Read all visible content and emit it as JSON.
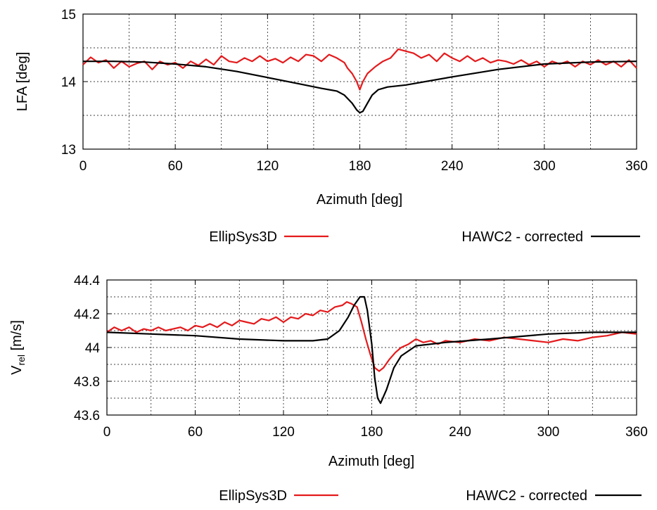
{
  "chart_data": [
    {
      "type": "line",
      "xlabel": "Azimuth [deg]",
      "ylabel": "LFA [deg]",
      "xlim": [
        0,
        360
      ],
      "ylim": [
        13,
        15
      ],
      "xticks": [
        "0",
        "60",
        "120",
        "180",
        "240",
        "300",
        "360"
      ],
      "yticks": [
        "13",
        "14",
        "15"
      ],
      "grid": true,
      "legend_placement": "below",
      "series": [
        {
          "name": "EllipSys3D",
          "color": "#e41a1c",
          "x": [
            0,
            5,
            10,
            15,
            20,
            25,
            30,
            35,
            40,
            45,
            50,
            55,
            60,
            65,
            70,
            75,
            80,
            85,
            90,
            95,
            100,
            105,
            110,
            115,
            120,
            125,
            130,
            135,
            140,
            145,
            150,
            155,
            160,
            165,
            170,
            172,
            175,
            178,
            180,
            182,
            185,
            188,
            190,
            195,
            200,
            205,
            210,
            215,
            220,
            225,
            230,
            235,
            240,
            245,
            250,
            255,
            260,
            265,
            270,
            275,
            280,
            285,
            290,
            295,
            300,
            305,
            310,
            315,
            320,
            325,
            330,
            335,
            340,
            345,
            350,
            355,
            360
          ],
          "values": [
            14.25,
            14.36,
            14.28,
            14.32,
            14.2,
            14.3,
            14.22,
            14.27,
            14.3,
            14.18,
            14.3,
            14.25,
            14.28,
            14.2,
            14.3,
            14.24,
            14.33,
            14.25,
            14.38,
            14.3,
            14.28,
            14.35,
            14.3,
            14.38,
            14.3,
            14.34,
            14.28,
            14.36,
            14.3,
            14.4,
            14.38,
            14.3,
            14.4,
            14.35,
            14.28,
            14.2,
            14.12,
            14.0,
            13.88,
            14.0,
            14.12,
            14.18,
            14.22,
            14.3,
            14.35,
            14.48,
            14.45,
            14.42,
            14.35,
            14.4,
            14.3,
            14.42,
            14.35,
            14.3,
            14.38,
            14.3,
            14.35,
            14.28,
            14.32,
            14.3,
            14.26,
            14.32,
            14.25,
            14.3,
            14.22,
            14.3,
            14.26,
            14.3,
            14.22,
            14.3,
            14.25,
            14.32,
            14.25,
            14.3,
            14.22,
            14.32,
            14.2
          ]
        },
        {
          "name": "HAWC2 - corrected",
          "color": "#000000",
          "x": [
            0,
            20,
            40,
            60,
            80,
            100,
            120,
            140,
            155,
            165,
            170,
            175,
            178,
            180,
            182,
            185,
            188,
            192,
            198,
            210,
            240,
            270,
            300,
            330,
            360
          ],
          "values": [
            14.3,
            14.3,
            14.29,
            14.26,
            14.22,
            14.15,
            14.06,
            13.97,
            13.9,
            13.86,
            13.8,
            13.68,
            13.58,
            13.54,
            13.56,
            13.68,
            13.8,
            13.88,
            13.92,
            13.95,
            14.07,
            14.18,
            14.26,
            14.29,
            14.3
          ]
        }
      ]
    },
    {
      "type": "line",
      "xlabel": "Azimuth [deg]",
      "ylabel_main": "V",
      "ylabel_sub": "rel",
      "ylabel_unit": " [m/s]",
      "xlim": [
        0,
        360
      ],
      "ylim": [
        43.6,
        44.4
      ],
      "xticks": [
        "0",
        "60",
        "120",
        "180",
        "240",
        "300",
        "360"
      ],
      "yticks": [
        "43.6",
        "43.8",
        "44",
        "44.2",
        "44.4"
      ],
      "grid": true,
      "legend_placement": "below",
      "series": [
        {
          "name": "EllipSys3D",
          "color": "#e41a1c",
          "x": [
            0,
            5,
            10,
            15,
            20,
            25,
            30,
            35,
            40,
            45,
            50,
            55,
            60,
            65,
            70,
            75,
            80,
            85,
            90,
            95,
            100,
            105,
            110,
            115,
            120,
            125,
            130,
            135,
            140,
            145,
            150,
            155,
            160,
            163,
            166,
            170,
            173,
            176,
            179,
            182,
            185,
            188,
            192,
            196,
            200,
            205,
            210,
            215,
            220,
            225,
            230,
            240,
            250,
            260,
            270,
            280,
            290,
            300,
            310,
            320,
            330,
            340,
            350,
            360
          ],
          "values": [
            44.09,
            44.12,
            44.1,
            44.12,
            44.09,
            44.11,
            44.1,
            44.12,
            44.1,
            44.11,
            44.12,
            44.1,
            44.13,
            44.12,
            44.14,
            44.12,
            44.15,
            44.13,
            44.16,
            44.15,
            44.14,
            44.17,
            44.16,
            44.18,
            44.15,
            44.18,
            44.17,
            44.2,
            44.19,
            44.22,
            44.21,
            44.24,
            44.25,
            44.27,
            44.26,
            44.24,
            44.15,
            44.05,
            43.96,
            43.88,
            43.86,
            43.88,
            43.93,
            43.97,
            44.0,
            44.02,
            44.05,
            44.03,
            44.04,
            44.02,
            44.04,
            44.03,
            44.05,
            44.04,
            44.06,
            44.05,
            44.04,
            44.03,
            44.05,
            44.04,
            44.06,
            44.07,
            44.09,
            44.08
          ]
        },
        {
          "name": "HAWC2 - corrected",
          "color": "#000000",
          "x": [
            0,
            30,
            60,
            90,
            120,
            140,
            150,
            158,
            164,
            168,
            172,
            175,
            177,
            180,
            182,
            184,
            186,
            190,
            195,
            200,
            210,
            230,
            260,
            300,
            330,
            360
          ],
          "values": [
            44.09,
            44.08,
            44.07,
            44.05,
            44.04,
            44.04,
            44.05,
            44.1,
            44.18,
            44.25,
            44.3,
            44.3,
            44.22,
            44.02,
            43.82,
            43.7,
            43.67,
            43.75,
            43.88,
            43.95,
            44.01,
            44.03,
            44.05,
            44.08,
            44.09,
            44.09
          ]
        }
      ]
    }
  ]
}
